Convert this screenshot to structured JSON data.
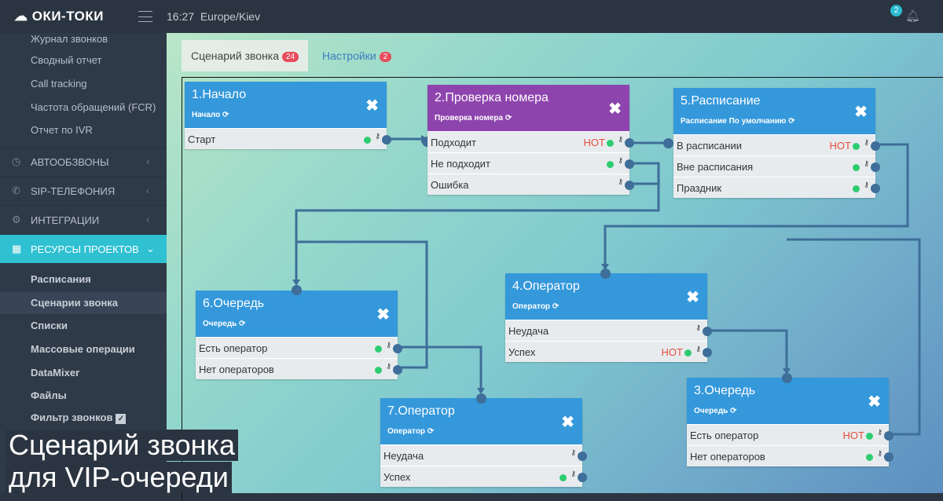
{
  "header": {
    "logo": "ОКИ-ТОКИ",
    "time": "16:27",
    "timezone": "Europe/Kiev",
    "notifications": "2"
  },
  "sidebar": {
    "sub_items": [
      "Журнал звонков",
      "Сводный отчет",
      "Call tracking",
      "Частота обращений (FCR)",
      "Отчет по IVR"
    ],
    "sections": [
      {
        "label": "АВТООБЗВОНЫ",
        "icon": "clock-icon"
      },
      {
        "label": "SIP-ТЕЛЕФОНИЯ",
        "icon": "phone-icon"
      },
      {
        "label": "ИНТЕГРАЦИИ",
        "icon": "gears-icon"
      },
      {
        "label": "РЕСУРСЫ ПРОЕКТОВ",
        "icon": "grid-icon"
      }
    ],
    "resources": [
      "Расписания",
      "Сценарии звонка",
      "Списки",
      "Массовые операции",
      "DataMixer",
      "Файлы",
      "Фильтр звонков"
    ]
  },
  "tabs": [
    {
      "label": "Сценарий звонка",
      "badge": "24"
    },
    {
      "label": "Настройки",
      "badge": "2"
    }
  ],
  "nodes": [
    {
      "title": "1.Начало",
      "subtitle": "Начало",
      "rows": [
        {
          "label": "Старт",
          "hot": "",
          "dot": true
        }
      ]
    },
    {
      "title": "2.Проверка номера",
      "subtitle": "Проверка номера",
      "rows": [
        {
          "label": "Подходит",
          "hot": "НОТ",
          "dot": true
        },
        {
          "label": "Не подходит",
          "hot": "",
          "dot": true
        },
        {
          "label": "Ошибка",
          "hot": "",
          "dot": false
        }
      ]
    },
    {
      "title": "5.Расписание",
      "subtitle": "Расписание По умолчанию",
      "rows": [
        {
          "label": "В расписании",
          "hot": "НОТ",
          "dot": true
        },
        {
          "label": "Вне расписания",
          "hot": "",
          "dot": true
        },
        {
          "label": "Праздник",
          "hot": "",
          "dot": true
        }
      ]
    },
    {
      "title": "6.Очередь",
      "subtitle": "Очередь",
      "rows": [
        {
          "label": "Есть оператор",
          "hot": "",
          "dot": true
        },
        {
          "label": "Нет операторов",
          "hot": "",
          "dot": true
        }
      ]
    },
    {
      "title": "4.Оператор",
      "subtitle": "Оператор",
      "rows": [
        {
          "label": "Неудача",
          "hot": "",
          "dot": false
        },
        {
          "label": "Успех",
          "hot": "НОТ",
          "dot": true
        }
      ]
    },
    {
      "title": "7.Оператор",
      "subtitle": "Оператор",
      "rows": [
        {
          "label": "Неудача",
          "hot": "",
          "dot": false
        },
        {
          "label": "Успех",
          "hot": "",
          "dot": true
        }
      ]
    },
    {
      "title": "3.Очередь",
      "subtitle": "Очередь",
      "rows": [
        {
          "label": "Есть оператор",
          "hot": "НОТ",
          "dot": true
        },
        {
          "label": "Нет операторов",
          "hot": "",
          "dot": true
        }
      ]
    }
  ],
  "caption": {
    "line1": "Сценарий звонка",
    "line2": "для VIP-очереди"
  },
  "colors": {
    "node_blue": "#3498db",
    "node_purple": "#8e44ad",
    "accent": "#2fc0d2",
    "link": "#3e6e99",
    "hot": "#e74c3c",
    "ok": "#2ecc71"
  }
}
